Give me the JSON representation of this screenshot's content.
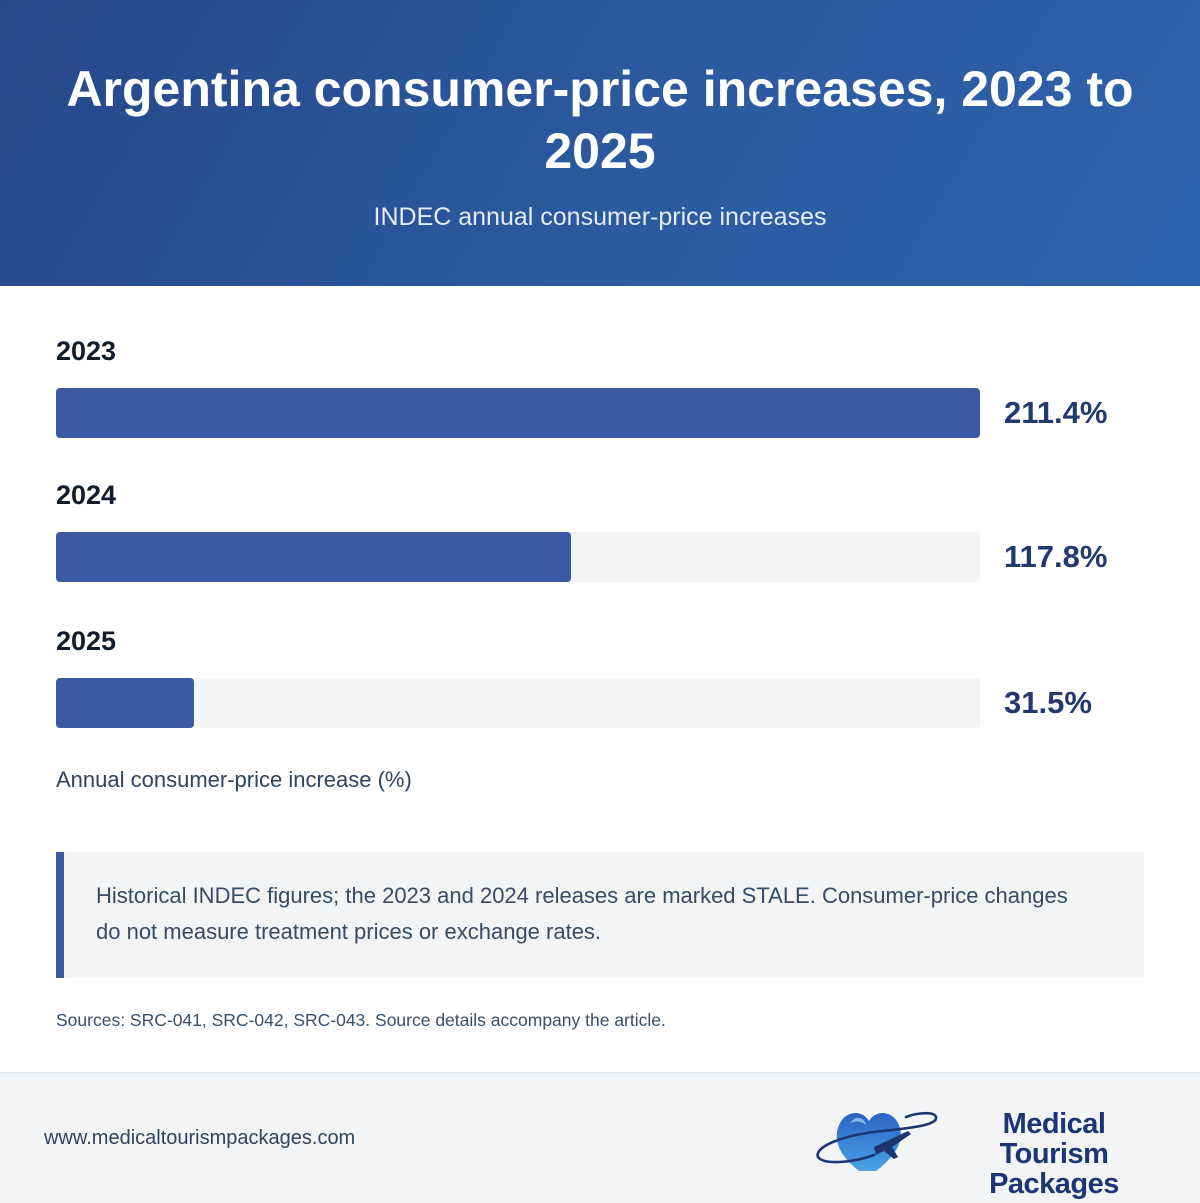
{
  "header": {
    "title": "Argentina consumer-price increases, 2023 to 2025",
    "subtitle": "INDEC annual consumer-price increases"
  },
  "chart_data": {
    "type": "bar",
    "orientation": "horizontal",
    "categories": [
      "2023",
      "2024",
      "2025"
    ],
    "values": [
      211.4,
      117.8,
      31.5
    ],
    "value_labels": [
      "211.4%",
      "117.8%",
      "31.5%"
    ],
    "xlabel": "Annual consumer-price increase (%)",
    "xlim": [
      0,
      211.4
    ],
    "grid": false,
    "bar_color": "#3a5ba3",
    "track_color": "#f2f4f6"
  },
  "note": {
    "text": "Historical INDEC figures; the 2023 and 2024 releases are marked STALE. Consumer-price changes do not measure treatment prices or exchange rates."
  },
  "sources": "Sources: SRC-041, SRC-042, SRC-043. Source details accompany the article.",
  "footer": {
    "url": "www.medicaltourismpackages.com",
    "logo_line1": "Medical Tourism",
    "logo_line2": "Packages",
    "logo_icon": "heart-airplane-icon"
  },
  "colors": {
    "header_start": "#27478a",
    "header_end": "#2d63ad",
    "accent": "#3a5ba3",
    "value_text": "#223a70"
  }
}
